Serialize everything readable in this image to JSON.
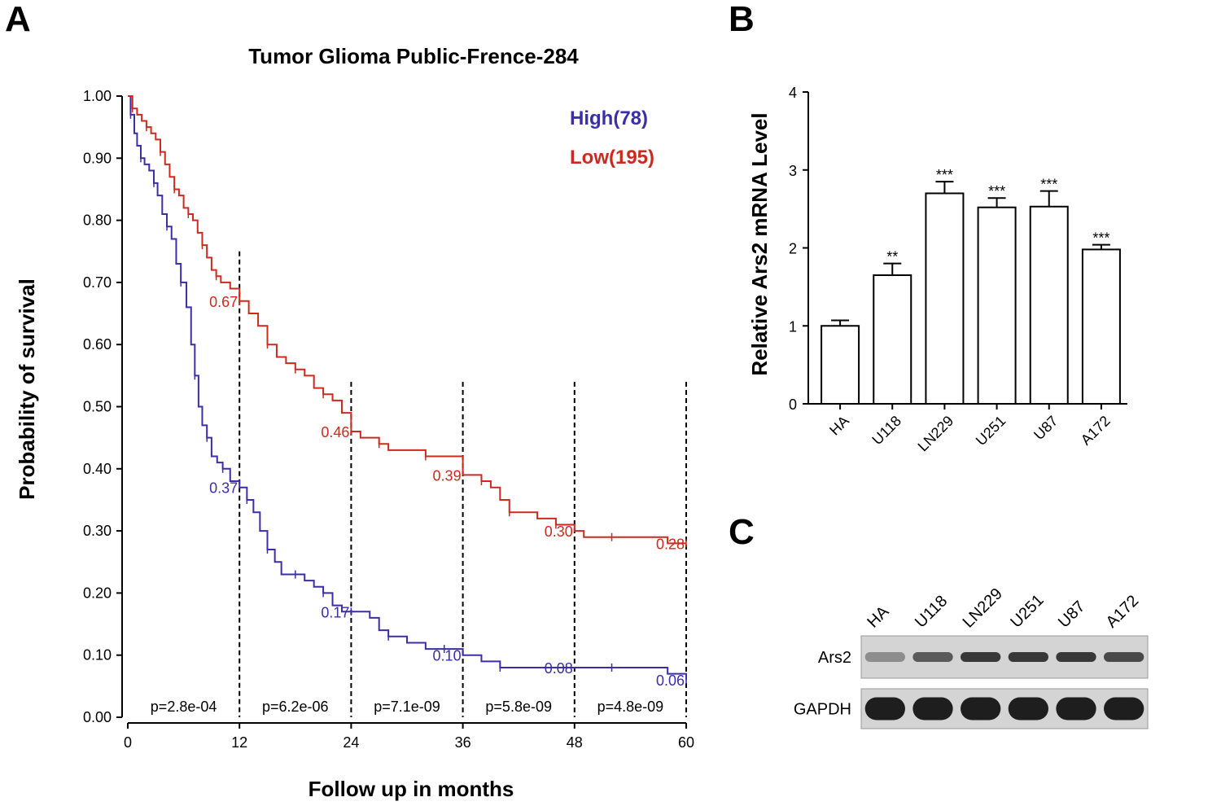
{
  "panels": {
    "a": "A",
    "b": "B",
    "c": "C"
  },
  "chart_data": [
    {
      "type": "line",
      "title": "Tumor Glioma Public-Frence-284",
      "xlabel": "Follow up in months",
      "ylabel": "Probability of survival",
      "xlim": [
        0,
        60
      ],
      "ylim": [
        0,
        1
      ],
      "x_ticks": [
        "0",
        "12",
        "24",
        "36",
        "48",
        "60"
      ],
      "y_ticks": [
        "0.00",
        "0.10",
        "0.20",
        "0.30",
        "0.40",
        "0.50",
        "0.60",
        "0.70",
        "0.80",
        "0.90",
        "1.00"
      ],
      "colors": {
        "high": "#3a2fa8",
        "low": "#cc2a1e"
      },
      "series": [
        {
          "name": "High(78)",
          "points": [
            [
              0,
              1.0
            ],
            [
              0.3,
              0.97
            ],
            [
              0.7,
              0.94
            ],
            [
              1.0,
              0.92
            ],
            [
              1.4,
              0.9
            ],
            [
              1.8,
              0.89
            ],
            [
              2.3,
              0.88
            ],
            [
              2.8,
              0.86
            ],
            [
              3.2,
              0.84
            ],
            [
              3.7,
              0.81
            ],
            [
              4.2,
              0.79
            ],
            [
              4.7,
              0.77
            ],
            [
              5.2,
              0.73
            ],
            [
              5.7,
              0.7
            ],
            [
              6.3,
              0.66
            ],
            [
              6.8,
              0.6
            ],
            [
              7.2,
              0.55
            ],
            [
              7.6,
              0.5
            ],
            [
              8.0,
              0.47
            ],
            [
              8.5,
              0.45
            ],
            [
              9.0,
              0.42
            ],
            [
              9.6,
              0.41
            ],
            [
              10.2,
              0.4
            ],
            [
              11.0,
              0.38
            ],
            [
              12.0,
              0.37
            ],
            [
              12.8,
              0.35
            ],
            [
              13.5,
              0.33
            ],
            [
              14.2,
              0.3
            ],
            [
              15.0,
              0.27
            ],
            [
              15.8,
              0.25
            ],
            [
              16.5,
              0.23
            ],
            [
              18.0,
              0.23
            ],
            [
              19.0,
              0.22
            ],
            [
              20.0,
              0.21
            ],
            [
              21.0,
              0.2
            ],
            [
              22.0,
              0.18
            ],
            [
              23.0,
              0.17
            ],
            [
              24.0,
              0.17
            ],
            [
              26.0,
              0.16
            ],
            [
              27.0,
              0.14
            ],
            [
              28.0,
              0.13
            ],
            [
              30.0,
              0.12
            ],
            [
              32.0,
              0.11
            ],
            [
              34.0,
              0.11
            ],
            [
              36.0,
              0.1
            ],
            [
              38.0,
              0.09
            ],
            [
              40.0,
              0.08
            ],
            [
              42.0,
              0.08
            ],
            [
              48.0,
              0.08
            ],
            [
              52.0,
              0.08
            ],
            [
              56.0,
              0.08
            ],
            [
              58.0,
              0.07
            ],
            [
              60.0,
              0.06
            ]
          ],
          "annotations": [
            [
              12,
              0.37,
              "0.37"
            ],
            [
              24,
              0.17,
              "0.17"
            ],
            [
              36,
              0.1,
              "0.10"
            ],
            [
              48,
              0.08,
              "0.08"
            ],
            [
              60,
              0.06,
              "0.06"
            ]
          ]
        },
        {
          "name": "Low(195)",
          "points": [
            [
              0,
              1.0
            ],
            [
              0.5,
              0.98
            ],
            [
              1.0,
              0.97
            ],
            [
              1.5,
              0.96
            ],
            [
              2.0,
              0.95
            ],
            [
              2.5,
              0.94
            ],
            [
              3.0,
              0.93
            ],
            [
              3.5,
              0.91
            ],
            [
              4.0,
              0.89
            ],
            [
              4.5,
              0.87
            ],
            [
              5.0,
              0.85
            ],
            [
              5.5,
              0.84
            ],
            [
              6.0,
              0.82
            ],
            [
              6.5,
              0.81
            ],
            [
              7.0,
              0.8
            ],
            [
              7.5,
              0.78
            ],
            [
              8.0,
              0.76
            ],
            [
              8.5,
              0.74
            ],
            [
              9.0,
              0.72
            ],
            [
              9.5,
              0.71
            ],
            [
              10.0,
              0.7
            ],
            [
              11.0,
              0.69
            ],
            [
              12.0,
              0.67
            ],
            [
              13.0,
              0.65
            ],
            [
              14.0,
              0.63
            ],
            [
              15.0,
              0.6
            ],
            [
              16.0,
              0.58
            ],
            [
              17.0,
              0.57
            ],
            [
              18.0,
              0.56
            ],
            [
              19.0,
              0.55
            ],
            [
              20.0,
              0.53
            ],
            [
              21.0,
              0.52
            ],
            [
              22.0,
              0.51
            ],
            [
              23.0,
              0.49
            ],
            [
              24.0,
              0.46
            ],
            [
              25.0,
              0.45
            ],
            [
              26.0,
              0.45
            ],
            [
              27.0,
              0.44
            ],
            [
              28.0,
              0.43
            ],
            [
              30.0,
              0.43
            ],
            [
              32.0,
              0.42
            ],
            [
              34.0,
              0.42
            ],
            [
              36.0,
              0.39
            ],
            [
              38.0,
              0.38
            ],
            [
              39.0,
              0.37
            ],
            [
              40.0,
              0.35
            ],
            [
              41.0,
              0.33
            ],
            [
              42.0,
              0.33
            ],
            [
              44.0,
              0.32
            ],
            [
              46.0,
              0.31
            ],
            [
              48.0,
              0.3
            ],
            [
              49.0,
              0.29
            ],
            [
              52.0,
              0.29
            ],
            [
              55.0,
              0.29
            ],
            [
              58.0,
              0.28
            ],
            [
              60.0,
              0.28
            ]
          ],
          "annotations": [
            [
              12,
              0.67,
              "0.67"
            ],
            [
              24,
              0.46,
              "0.46"
            ],
            [
              36,
              0.39,
              "0.39"
            ],
            [
              48,
              0.3,
              "0.30"
            ],
            [
              60,
              0.28,
              "0.28"
            ]
          ]
        }
      ],
      "cutoffs": [
        12,
        24,
        36,
        48,
        60
      ],
      "p_values": [
        {
          "x": 6,
          "label": "p=2.8e-04"
        },
        {
          "x": 18,
          "label": "p=6.2e-06"
        },
        {
          "x": 30,
          "label": "p=7.1e-09"
        },
        {
          "x": 42,
          "label": "p=5.8e-09"
        },
        {
          "x": 54,
          "label": "p=4.8e-09"
        }
      ],
      "legend": {
        "position": "top-right",
        "high_label": "High(78)",
        "low_label": "Low(195)"
      }
    },
    {
      "type": "bar",
      "title": "",
      "xlabel": "",
      "ylabel": "Relative Ars2 mRNA Level",
      "ylim": [
        0,
        4
      ],
      "y_ticks": [
        "0",
        "1",
        "2",
        "3",
        "4"
      ],
      "categories": [
        "HA",
        "U118",
        "LN229",
        "U251",
        "U87",
        "A172"
      ],
      "values": [
        1.0,
        1.65,
        2.7,
        2.52,
        2.53,
        1.98
      ],
      "errors": [
        0.07,
        0.15,
        0.15,
        0.12,
        0.2,
        0.06
      ],
      "significance": [
        "",
        "**",
        "***",
        "***",
        "***",
        "***"
      ]
    }
  ],
  "blot": {
    "lanes": [
      "HA",
      "U118",
      "LN229",
      "U251",
      "U87",
      "A172"
    ],
    "rows": [
      {
        "label": "Ars2",
        "intensities": [
          0.35,
          0.65,
          0.85,
          0.85,
          0.85,
          0.75
        ]
      },
      {
        "label": "GAPDH",
        "intensities": [
          1.0,
          1.0,
          1.0,
          1.0,
          1.0,
          1.0
        ]
      }
    ]
  }
}
